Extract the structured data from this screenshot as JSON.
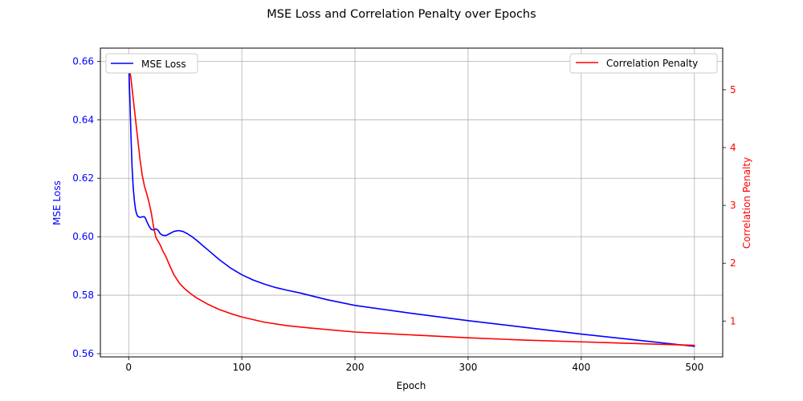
{
  "chart_data": {
    "type": "line",
    "title": "MSE Loss and Correlation Penalty over Epochs",
    "xlabel": "Epoch",
    "xlim": [
      -25,
      525
    ],
    "x_ticks": [
      0,
      100,
      200,
      300,
      400,
      500
    ],
    "grid": true,
    "left_axis": {
      "label": "MSE Loss",
      "color": "#0000ff",
      "ylim": [
        0.5589,
        0.6645
      ],
      "ticks": [
        0.56,
        0.58,
        0.6,
        0.62,
        0.64,
        0.66
      ],
      "tick_labels": [
        "0.56",
        "0.58",
        "0.60",
        "0.62",
        "0.64",
        "0.66"
      ]
    },
    "right_axis": {
      "label": "Correlation Penalty",
      "color": "#ff0000",
      "ylim": [
        0.38,
        5.72
      ],
      "ticks": [
        1,
        2,
        3,
        4,
        5
      ],
      "tick_labels": [
        "1",
        "2",
        "3",
        "4",
        "5"
      ]
    },
    "series": [
      {
        "name": "MSE Loss",
        "axis": "left",
        "color": "#0000ff",
        "legend_position": "upper-left",
        "x": [
          0,
          1,
          2,
          3,
          4,
          5,
          6,
          7,
          8,
          10,
          12,
          14,
          15,
          16,
          18,
          20,
          22,
          24,
          26,
          28,
          30,
          33,
          36,
          40,
          44,
          48,
          52,
          56,
          60,
          70,
          80,
          90,
          100,
          110,
          120,
          130,
          140,
          150,
          175,
          200,
          250,
          300,
          350,
          400,
          450,
          500
        ],
        "y": [
          0.6595,
          0.648,
          0.635,
          0.624,
          0.617,
          0.6125,
          0.6095,
          0.6078,
          0.607,
          0.6066,
          0.6068,
          0.6068,
          0.6062,
          0.6052,
          0.6036,
          0.6025,
          0.6023,
          0.6027,
          0.6022,
          0.601,
          0.6005,
          0.6004,
          0.601,
          0.6018,
          0.6021,
          0.6018,
          0.601,
          0.6,
          0.5988,
          0.5955,
          0.5922,
          0.5893,
          0.587,
          0.5852,
          0.5838,
          0.5826,
          0.5817,
          0.5809,
          0.5785,
          0.5765,
          0.5738,
          0.5713,
          0.569,
          0.5667,
          0.5646,
          0.5625
        ]
      },
      {
        "name": "Correlation Penalty",
        "axis": "right",
        "color": "#ff0000",
        "legend_position": "upper-right",
        "x": [
          0,
          2,
          4,
          6,
          8,
          10,
          12,
          14,
          16,
          18,
          20,
          22,
          24,
          26,
          28,
          30,
          33,
          36,
          40,
          45,
          50,
          55,
          60,
          70,
          80,
          90,
          100,
          120,
          140,
          160,
          200,
          250,
          300,
          350,
          400,
          450,
          500
        ],
        "y": [
          5.45,
          5.2,
          4.85,
          4.5,
          4.15,
          3.8,
          3.52,
          3.33,
          3.2,
          3.05,
          2.87,
          2.63,
          2.45,
          2.38,
          2.31,
          2.22,
          2.11,
          1.97,
          1.8,
          1.65,
          1.55,
          1.47,
          1.4,
          1.29,
          1.2,
          1.13,
          1.07,
          0.98,
          0.92,
          0.88,
          0.81,
          0.76,
          0.71,
          0.67,
          0.64,
          0.61,
          0.58
        ]
      }
    ]
  }
}
